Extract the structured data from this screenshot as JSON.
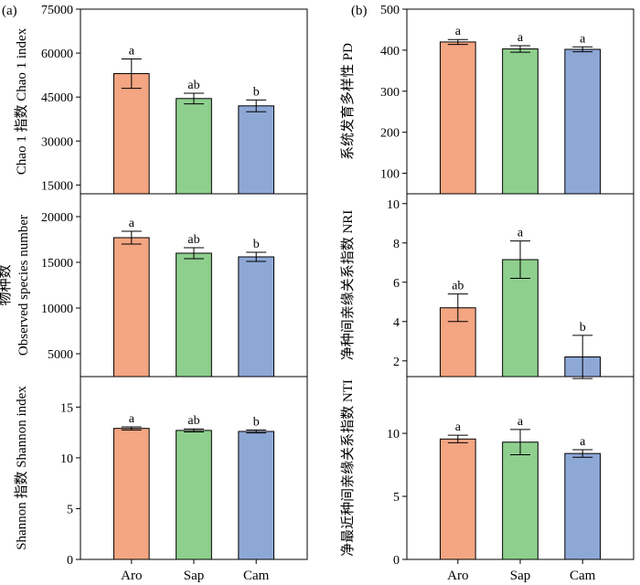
{
  "figure": {
    "panel_labels": [
      "(a)",
      "(b)"
    ]
  },
  "chart_data": [
    {
      "type": "bar",
      "categories": [
        "Aro",
        "Sap",
        "Cam"
      ],
      "values": [
        53000,
        44500,
        42000
      ],
      "errors": [
        5000,
        1800,
        2000
      ],
      "letters": [
        "a",
        "ab",
        "b"
      ],
      "colors": [
        "#f4a582",
        "#8ecf8e",
        "#8ea8d6"
      ],
      "ylabel": "Chao 1 指数 Chao 1 index",
      "ylim": [
        12000,
        75000
      ],
      "yticks": [
        15000,
        30000,
        45000,
        60000,
        75000
      ],
      "panel": "(a)"
    },
    {
      "type": "bar",
      "categories": [
        "Aro",
        "Sap",
        "Cam"
      ],
      "values": [
        17700,
        16000,
        15600
      ],
      "errors": [
        700,
        600,
        500
      ],
      "letters": [
        "a",
        "ab",
        "b"
      ],
      "colors": [
        "#f4a582",
        "#8ecf8e",
        "#8ea8d6"
      ],
      "ylabel_lines": [
        "物种数",
        "Observed species number"
      ],
      "ylim": [
        2500,
        22500
      ],
      "yticks": [
        5000,
        10000,
        15000,
        20000
      ]
    },
    {
      "type": "bar",
      "categories": [
        "Aro",
        "Sap",
        "Cam"
      ],
      "values": [
        12.9,
        12.7,
        12.6
      ],
      "errors": [
        0.15,
        0.15,
        0.15
      ],
      "letters": [
        "a",
        "ab",
        "b"
      ],
      "colors": [
        "#f4a582",
        "#8ecf8e",
        "#8ea8d6"
      ],
      "ylabel": "Shannon 指数 Shannon index",
      "ylim": [
        0,
        18
      ],
      "yticks": [
        0,
        5,
        10,
        15
      ],
      "xticks": [
        "Aro",
        "Sap",
        "Cam"
      ]
    },
    {
      "type": "bar",
      "categories": [
        "Aro",
        "Sap",
        "Cam"
      ],
      "values": [
        420,
        403,
        402
      ],
      "errors": [
        6,
        8,
        6
      ],
      "letters": [
        "a",
        "a",
        "a"
      ],
      "colors": [
        "#f4a582",
        "#8ecf8e",
        "#8ea8d6"
      ],
      "ylabel": "系统发育多样性 PD",
      "ylim": [
        50,
        500
      ],
      "yticks": [
        100,
        200,
        300,
        400,
        500
      ],
      "panel": "(b)"
    },
    {
      "type": "bar",
      "categories": [
        "Aro",
        "Sap",
        "Cam"
      ],
      "values": [
        4.7,
        7.15,
        2.2
      ],
      "errors": [
        0.7,
        0.95,
        1.1
      ],
      "letters": [
        "ab",
        "a",
        "b"
      ],
      "colors": [
        "#f4a582",
        "#8ecf8e",
        "#8ea8d6"
      ],
      "ylabel": "净种间亲缘关系指数 NRI",
      "ylim": [
        1.2,
        10.5
      ],
      "yticks": [
        2,
        4,
        6,
        8,
        10
      ]
    },
    {
      "type": "bar",
      "categories": [
        "Aro",
        "Sap",
        "Cam"
      ],
      "values": [
        9.55,
        9.3,
        8.4
      ],
      "errors": [
        0.3,
        1.0,
        0.3
      ],
      "letters": [
        "a",
        "a",
        "a"
      ],
      "colors": [
        "#f4a582",
        "#8ecf8e",
        "#8ea8d6"
      ],
      "ylabel": "净最近种间亲缘关系指数 NTI",
      "ylim": [
        0,
        14.5
      ],
      "yticks": [
        0,
        5,
        10
      ],
      "xticks": [
        "Aro",
        "Sap",
        "Cam"
      ]
    }
  ]
}
